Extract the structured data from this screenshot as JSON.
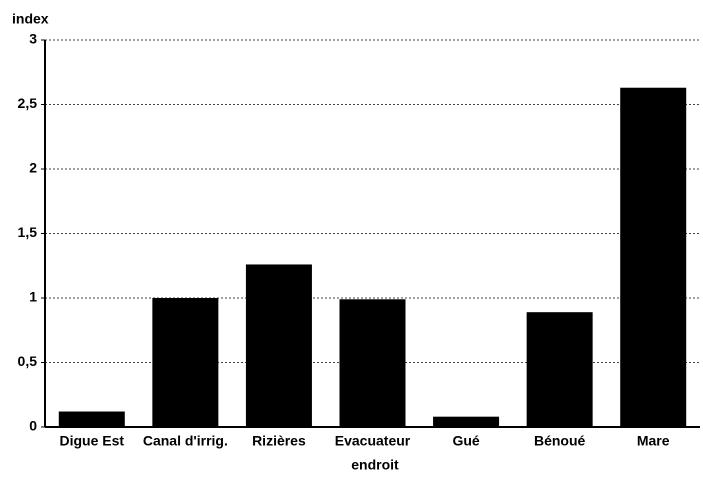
{
  "chart_data": {
    "type": "bar",
    "y_label": "index",
    "x_label": "endroit",
    "categories": [
      "Digue Est",
      "Canal d'irrig.",
      "Rizières",
      "Evacuateur",
      "Gué",
      "Bénoué",
      "Mare"
    ],
    "values": [
      0.12,
      1.0,
      1.26,
      0.99,
      0.08,
      0.89,
      2.63
    ],
    "color": "#000000",
    "ylim": [
      0,
      3
    ],
    "yticks": [
      0,
      {
        "value": 0.5,
        "label": "0,5"
      },
      1,
      {
        "value": 1.5,
        "label": "1,5"
      },
      2,
      {
        "value": 2.5,
        "label": "2,5"
      },
      3
    ],
    "grid": true
  }
}
